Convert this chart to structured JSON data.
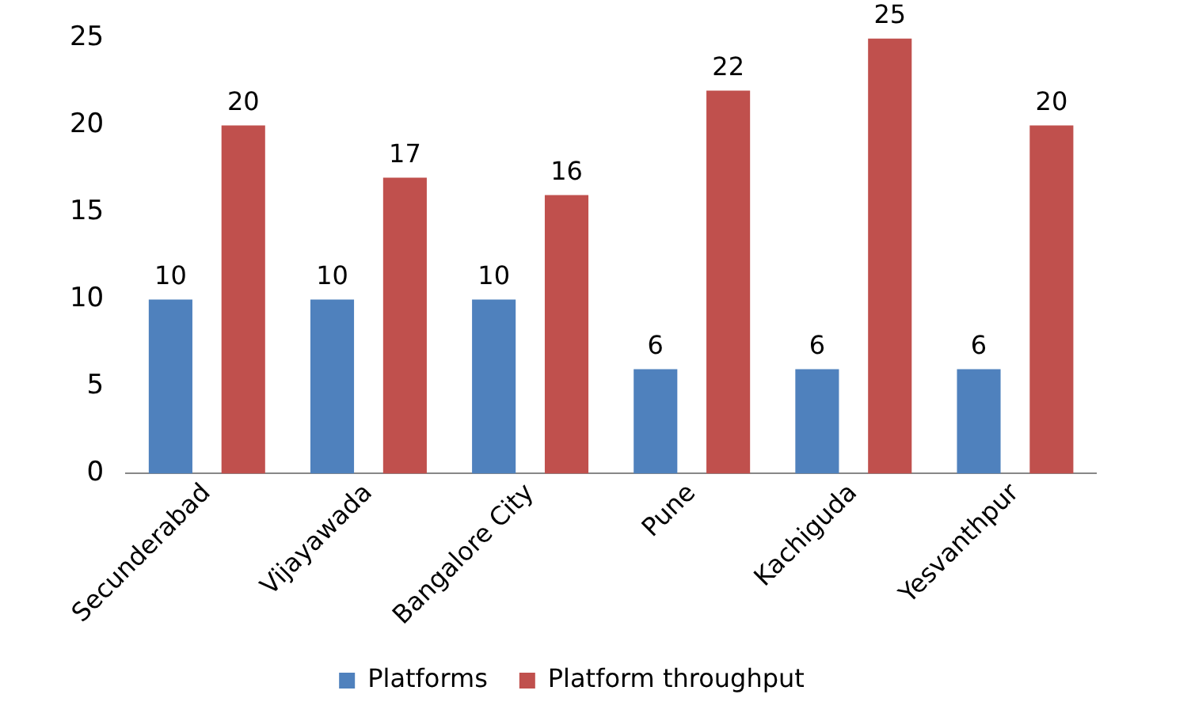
{
  "chart_data": {
    "type": "bar",
    "categories": [
      "Secunderabad",
      "Vijayawada",
      "Bangalore City",
      "Pune",
      "Kachiguda",
      "Yesvanthpur"
    ],
    "series": [
      {
        "name": "Platforms",
        "color": "#4f81bd",
        "values": [
          10,
          10,
          10,
          6,
          6,
          6
        ]
      },
      {
        "name": "Platform throughput",
        "color": "#c0504d",
        "values": [
          20,
          17,
          16,
          22,
          25,
          20
        ]
      }
    ],
    "ylim": [
      0,
      25
    ],
    "yticks": [
      0,
      5,
      10,
      15,
      20,
      25
    ],
    "grid": false,
    "legend": "bottom",
    "data_labels": true
  }
}
